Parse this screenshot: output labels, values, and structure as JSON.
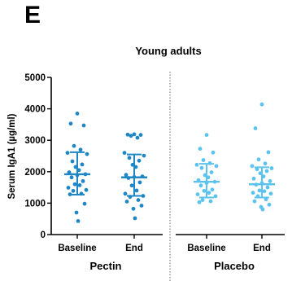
{
  "panel_label": "E",
  "chart_data": {
    "type": "scatter",
    "title": "Young adults",
    "ylabel": "Serum IgA1 (µg/ml)",
    "xlabel": "",
    "ylim": [
      0,
      5000
    ],
    "yticks": [
      0,
      1000,
      2000,
      3000,
      4000,
      5000
    ],
    "groups": [
      "Pectin",
      "Placebo"
    ],
    "categories": [
      "Baseline",
      "End",
      "Baseline",
      "End"
    ],
    "grid": false,
    "colors": {
      "pectin": "#1f86c6",
      "placebo": "#5cc3ee"
    },
    "series": [
      {
        "group": "Pectin",
        "category": "Baseline",
        "points": [
          3850,
          3530,
          3470,
          2820,
          2700,
          2600,
          2560,
          2330,
          2230,
          2150,
          2050,
          1980,
          1920,
          1890,
          1820,
          1700,
          1600,
          1570,
          1490,
          1420,
          1390,
          1300,
          1280,
          980,
          700,
          430
        ],
        "mean": 1920,
        "sd_low": 1270,
        "sd_high": 2620
      },
      {
        "group": "Pectin",
        "category": "End",
        "points": [
          3190,
          3180,
          3170,
          3140,
          3080,
          2600,
          2510,
          2440,
          2350,
          2220,
          2150,
          1900,
          1850,
          1830,
          1800,
          1660,
          1560,
          1400,
          1300,
          1230,
          1200,
          1100,
          1050,
          920,
          820,
          520
        ],
        "mean": 1820,
        "sd_low": 1230,
        "sd_high": 2550
      },
      {
        "group": "Placebo",
        "category": "Baseline",
        "points": [
          3170,
          2730,
          2610,
          2370,
          2270,
          2220,
          2180,
          2120,
          1980,
          1890,
          1820,
          1730,
          1680,
          1640,
          1560,
          1430,
          1390,
          1330,
          1280,
          1220,
          1100,
          1060,
          1030
        ],
        "mean": 1680,
        "sd_low": 1180,
        "sd_high": 2250
      },
      {
        "group": "Placebo",
        "category": "End",
        "points": [
          4140,
          3380,
          2620,
          2390,
          2260,
          2180,
          2110,
          2080,
          2020,
          1950,
          1850,
          1780,
          1700,
          1640,
          1590,
          1500,
          1400,
          1380,
          1330,
          1300,
          1220,
          1120,
          1060,
          950,
          880,
          800
        ],
        "mean": 1600,
        "sd_low": 1180,
        "sd_high": 2140
      }
    ]
  }
}
